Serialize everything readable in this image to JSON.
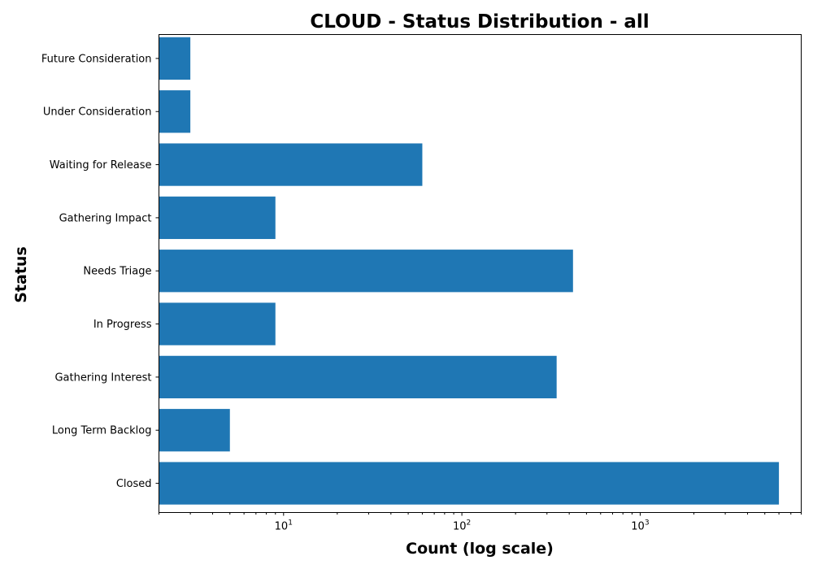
{
  "chart_data": {
    "type": "bar",
    "orientation": "horizontal",
    "title": "CLOUD - Status Distribution - all",
    "xlabel": "Count (log scale)",
    "ylabel": "Status",
    "x_scale": "log",
    "xlim": [
      2,
      8000
    ],
    "x_ticks": [
      {
        "value": 10,
        "base": "10",
        "exp": "1"
      },
      {
        "value": 100,
        "base": "10",
        "exp": "2"
      },
      {
        "value": 1000,
        "base": "10",
        "exp": "3"
      }
    ],
    "categories": [
      "Future Consideration",
      "Under Consideration",
      "Waiting for Release",
      "Gathering Impact",
      "Needs Triage",
      "In Progress",
      "Gathering Interest",
      "Long Term Backlog",
      "Closed"
    ],
    "values": [
      3,
      3,
      60,
      9,
      420,
      9,
      340,
      5,
      6000
    ],
    "bar_color": "#1f77b4",
    "grid": false,
    "legend": "none"
  }
}
